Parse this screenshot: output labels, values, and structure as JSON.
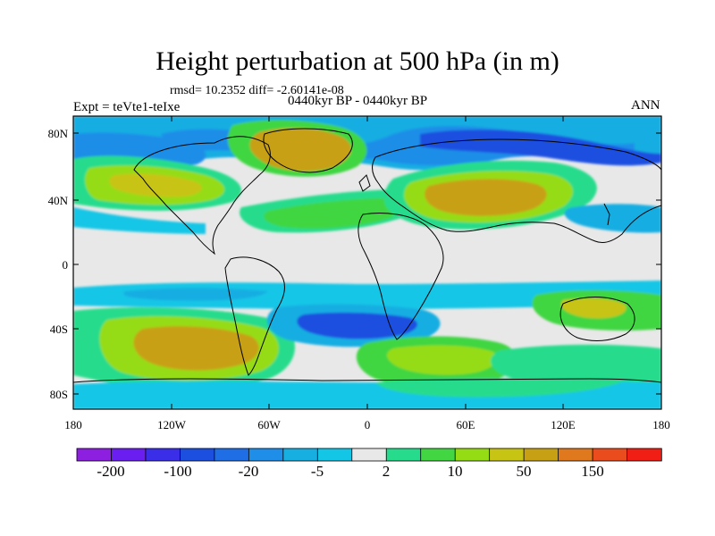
{
  "header": {
    "title": "Height perturbation at 500 hPa (in m)",
    "stats": "rmsd= 10.2352 diff= -2.60141e-08",
    "left_label": "Expt = teVte1-teIxe",
    "center_label": "0440kyr BP - 0440kyr BP",
    "right_label": "ANN"
  },
  "map": {
    "lat_ticks": [
      "80N",
      "40N",
      "0",
      "40S",
      "80S"
    ],
    "lat_values": [
      80,
      40,
      0,
      -40,
      -80
    ],
    "lon_ticks": [
      "180",
      "120W",
      "60W",
      "0",
      "60E",
      "120E",
      "180"
    ],
    "lon_values": [
      -180,
      -120,
      -60,
      0,
      60,
      120,
      180
    ]
  },
  "colorbar": {
    "labels": [
      "-200",
      "-100",
      "-20",
      "-5",
      "2",
      "10",
      "50",
      "150"
    ],
    "colors": [
      "#8c1fe0",
      "#6a1ff0",
      "#3a2ee8",
      "#1c4fe0",
      "#1f6ee6",
      "#1f8ee8",
      "#17aee2",
      "#14c6e6",
      "#e8e8e8",
      "#26dc8c",
      "#41d642",
      "#96dc14",
      "#c8c414",
      "#c8a014",
      "#e0781e",
      "#ea4c1e",
      "#f01e14"
    ]
  }
}
